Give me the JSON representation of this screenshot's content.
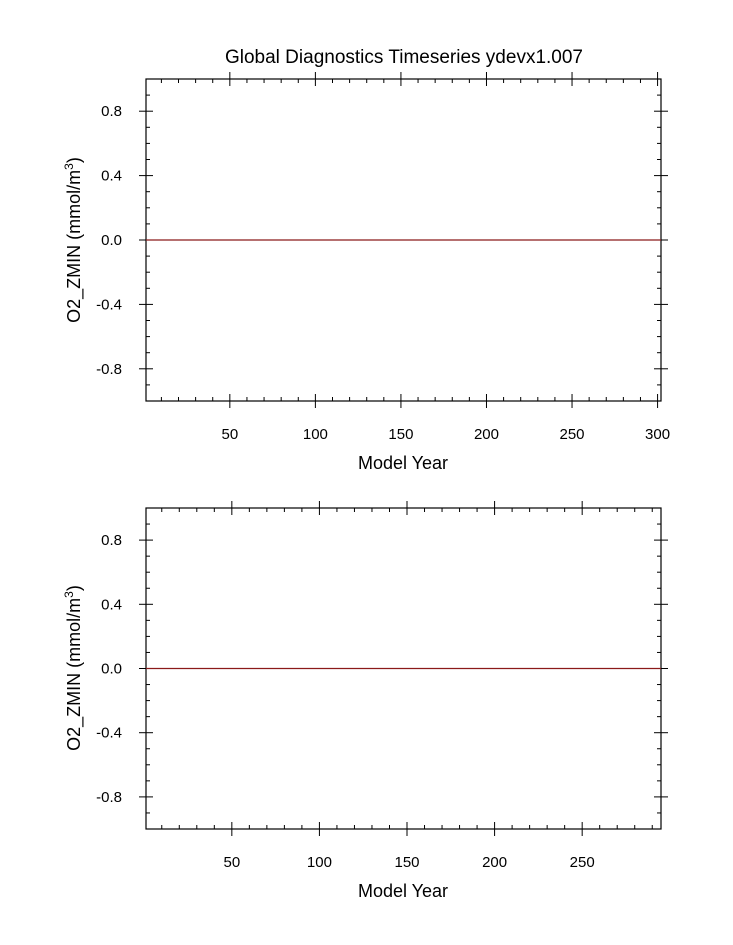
{
  "chart_data": [
    {
      "type": "line",
      "title": "Global Diagnostics Timeseries ydevx1.007",
      "xlabel": "Model Year",
      "ylabel": "O2_ZMIN (mmol/m³)",
      "ylabel_main": "O2_ZMIN (mmol/m",
      "ylabel_sup": "3",
      "ylabel_close": ")",
      "xlim": [
        1,
        302
      ],
      "ylim": [
        -1.0,
        1.0
      ],
      "x_major_ticks": [
        50,
        100,
        150,
        200,
        250,
        300
      ],
      "x_tick_labels": [
        "50",
        "100",
        "150",
        "200",
        "250",
        "300"
      ],
      "y_major_ticks": [
        -0.8,
        -0.4,
        0.0,
        0.4,
        0.8
      ],
      "y_tick_labels": [
        "-0.8",
        "-0.4",
        "0.0",
        "0.4",
        "0.8"
      ],
      "grid": false,
      "series": [
        {
          "color": "#8b1a1a",
          "x": [
            1,
            302
          ],
          "y": [
            0,
            0
          ]
        }
      ]
    },
    {
      "type": "line",
      "title": "",
      "xlabel": "Model Year",
      "ylabel": "O2_ZMIN (mmol/m³)",
      "ylabel_main": "O2_ZMIN (mmol/m",
      "ylabel_sup": "3",
      "ylabel_close": ")",
      "xlim": [
        1,
        295
      ],
      "ylim": [
        -1.0,
        1.0
      ],
      "x_major_ticks": [
        50,
        100,
        150,
        200,
        250
      ],
      "x_tick_labels": [
        "50",
        "100",
        "150",
        "200",
        "250"
      ],
      "y_major_ticks": [
        -0.8,
        -0.4,
        0.0,
        0.4,
        0.8
      ],
      "y_tick_labels": [
        "-0.8",
        "-0.4",
        "0.0",
        "0.4",
        "0.8"
      ],
      "grid": false,
      "series": [
        {
          "color": "#8b1a1a",
          "x": [
            1,
            295
          ],
          "y": [
            0,
            0
          ]
        }
      ]
    }
  ]
}
